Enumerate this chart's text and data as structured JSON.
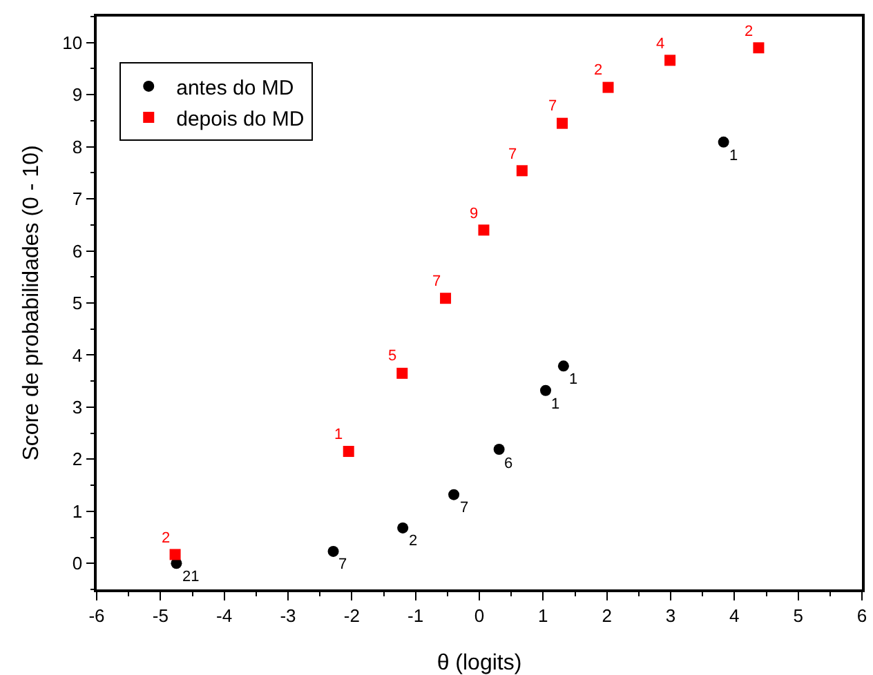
{
  "chart_data": {
    "type": "scatter",
    "xlabel": "θ (logits)",
    "ylabel": "Score de probabilidades (0 - 10)",
    "xlim": [
      -6,
      6
    ],
    "xticks": [
      -6,
      -5,
      -4,
      -3,
      -2,
      -1,
      0,
      1,
      2,
      3,
      4,
      5,
      6
    ],
    "ylim": [
      -0.5,
      10.5
    ],
    "yticks": [
      0,
      1,
      2,
      3,
      4,
      5,
      6,
      7,
      8,
      9,
      10
    ],
    "grid": false,
    "legend": "top left",
    "series": [
      {
        "name": "antes do MD",
        "color": "#000000",
        "marker": "circle",
        "x": [
          -4.75,
          -2.29,
          -1.2,
          -0.4,
          0.31,
          1.04,
          1.32,
          3.83
        ],
        "values": [
          0.0,
          0.23,
          0.68,
          1.32,
          2.19,
          3.32,
          3.79,
          8.09
        ]
      },
      {
        "name": "depois do MD",
        "color": "#ff0000",
        "marker": "square",
        "x": [
          -4.77,
          -2.05,
          -1.21,
          -0.53,
          0.07,
          0.67,
          1.3,
          2.02,
          2.99,
          4.38
        ],
        "values": [
          0.17,
          2.15,
          3.65,
          5.09,
          6.4,
          7.54,
          8.45,
          9.14,
          9.66,
          9.9
        ]
      }
    ],
    "annotations": [
      {
        "text": "21",
        "x": -4.75,
        "y": 0.0
      },
      {
        "text": "7",
        "x": -2.29,
        "y": 0.23
      },
      {
        "text": "2",
        "x": -1.2,
        "y": 0.68
      },
      {
        "text": "7",
        "x": -0.4,
        "y": 1.32
      },
      {
        "text": "6",
        "x": 0.31,
        "y": 2.19
      },
      {
        "text": "1",
        "x": 1.04,
        "y": 3.32
      },
      {
        "text": "1",
        "x": 1.32,
        "y": 3.79
      },
      {
        "text": "1",
        "x": 3.83,
        "y": 8.09
      },
      {
        "text": "2",
        "x": -4.77,
        "y": 0.17
      },
      {
        "text": "1",
        "x": -2.05,
        "y": 2.15
      },
      {
        "text": "5",
        "x": -1.21,
        "y": 3.65
      },
      {
        "text": "7",
        "x": -0.53,
        "y": 5.09
      },
      {
        "text": "9",
        "x": 0.07,
        "y": 6.4
      },
      {
        "text": "7",
        "x": 0.67,
        "y": 7.54
      },
      {
        "text": "7",
        "x": 1.3,
        "y": 8.45
      },
      {
        "text": "2",
        "x": 2.02,
        "y": 9.14
      },
      {
        "text": "4",
        "x": 2.99,
        "y": 9.66
      },
      {
        "text": "2",
        "x": 4.38,
        "y": 9.9
      }
    ]
  }
}
